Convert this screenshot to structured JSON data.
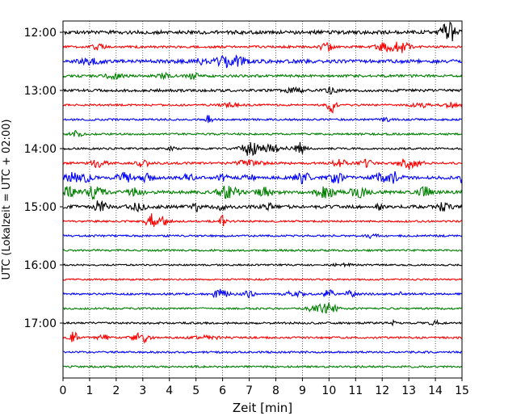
{
  "chart_data": {
    "type": "line",
    "xlabel": "Zeit  [min]",
    "ylabel": "UTC (Lokalzeit = UTC + 02:00)",
    "xlim": [
      0,
      15
    ],
    "x_ticks": [
      0,
      1,
      2,
      3,
      4,
      5,
      6,
      7,
      8,
      9,
      10,
      11,
      12,
      13,
      14,
      15
    ],
    "y_tick_labels": [
      "12:00",
      "13:00",
      "14:00",
      "15:00",
      "16:00",
      "17:00"
    ],
    "trace_start": "12:00",
    "trace_interval_min": 15,
    "trace_count": 24,
    "trace_colors": [
      "#000000",
      "#ff0000",
      "#0000ff",
      "#008000"
    ],
    "grid": "vertical dotted lines at each minute",
    "traces": [
      {
        "start": "12:00",
        "color": "#000000",
        "noise": 2.2,
        "events": [
          [
            14.4,
            8,
            0.25
          ],
          [
            14.6,
            6,
            0.2
          ]
        ]
      },
      {
        "start": "12:15",
        "color": "#ff0000",
        "noise": 1.4,
        "events": [
          [
            1.3,
            4,
            0.2
          ],
          [
            9.9,
            7,
            0.2
          ],
          [
            12.1,
            5,
            0.3
          ],
          [
            12.7,
            7,
            0.3
          ]
        ]
      },
      {
        "start": "12:30",
        "color": "#0000ff",
        "noise": 2.2,
        "events": [
          [
            1.0,
            4,
            0.3
          ],
          [
            6.2,
            7,
            0.4
          ],
          [
            6.7,
            4,
            0.2
          ],
          [
            5.2,
            3,
            0.2
          ]
        ]
      },
      {
        "start": "12:45",
        "color": "#008000",
        "noise": 1.6,
        "events": [
          [
            1.9,
            3,
            0.3
          ],
          [
            3.8,
            3,
            0.2
          ],
          [
            4.9,
            3,
            0.2
          ]
        ]
      },
      {
        "start": "13:00",
        "color": "#000000",
        "noise": 1.6,
        "events": [
          [
            8.7,
            3,
            0.3
          ],
          [
            10.1,
            3,
            0.2
          ]
        ]
      },
      {
        "start": "13:15",
        "color": "#ff0000",
        "noise": 1.2,
        "events": [
          [
            6.3,
            2,
            0.3
          ],
          [
            10.1,
            9,
            0.15
          ],
          [
            13.4,
            3,
            0.3
          ],
          [
            14.6,
            3,
            0.3
          ]
        ]
      },
      {
        "start": "13:30",
        "color": "#0000ff",
        "noise": 1.2,
        "events": [
          [
            5.5,
            7,
            0.1
          ],
          [
            12.1,
            2,
            0.2
          ]
        ]
      },
      {
        "start": "13:45",
        "color": "#008000",
        "noise": 1.2,
        "events": [
          [
            0.5,
            4,
            0.2
          ]
        ]
      },
      {
        "start": "14:00",
        "color": "#000000",
        "noise": 1.2,
        "events": [
          [
            4.1,
            4,
            0.1
          ],
          [
            7.0,
            8,
            0.3
          ],
          [
            7.8,
            4,
            0.6
          ],
          [
            8.9,
            7,
            0.2
          ]
        ]
      },
      {
        "start": "14:15",
        "color": "#ff0000",
        "noise": 1.4,
        "events": [
          [
            1.3,
            4,
            0.3
          ],
          [
            3.0,
            6,
            0.2
          ],
          [
            7.0,
            3,
            0.5
          ],
          [
            10.4,
            4,
            0.3
          ],
          [
            11.4,
            4,
            0.2
          ],
          [
            13.0,
            6,
            0.4
          ]
        ]
      },
      {
        "start": "14:30",
        "color": "#0000ff",
        "noise": 1.8,
        "events": [
          [
            0.3,
            6,
            0.3
          ],
          [
            0.9,
            4,
            0.2
          ],
          [
            2.3,
            6,
            0.3
          ],
          [
            3.1,
            6,
            0.2
          ],
          [
            4.7,
            4,
            0.2
          ],
          [
            6.0,
            4,
            0.2
          ],
          [
            7.0,
            4,
            0.2
          ],
          [
            9.0,
            6,
            0.3
          ],
          [
            10.3,
            6,
            0.3
          ],
          [
            12.0,
            6,
            0.3
          ],
          [
            12.5,
            7,
            0.2
          ],
          [
            15.0,
            6,
            0.1
          ]
        ]
      },
      {
        "start": "14:45",
        "color": "#008000",
        "noise": 2.0,
        "events": [
          [
            0.2,
            6,
            0.3
          ],
          [
            1.2,
            7,
            0.3
          ],
          [
            2.7,
            4,
            0.3
          ],
          [
            6.2,
            7,
            0.4
          ],
          [
            7.6,
            5,
            0.3
          ],
          [
            9.9,
            6,
            0.4
          ],
          [
            11.1,
            6,
            0.3
          ],
          [
            13.6,
            6,
            0.2
          ]
        ]
      },
      {
        "start": "15:00",
        "color": "#000000",
        "noise": 2.0,
        "events": [
          [
            1.4,
            8,
            0.2
          ],
          [
            2.8,
            4,
            0.3
          ],
          [
            5.0,
            7,
            0.1
          ],
          [
            5.9,
            3,
            0.2
          ],
          [
            7.7,
            4,
            0.2
          ],
          [
            11.9,
            5,
            0.1
          ],
          [
            14.3,
            4,
            0.3
          ]
        ]
      },
      {
        "start": "15:15",
        "color": "#ff0000",
        "noise": 1.2,
        "events": [
          [
            3.3,
            9,
            0.2
          ],
          [
            3.8,
            5,
            0.2
          ],
          [
            6.0,
            8,
            0.1
          ]
        ]
      },
      {
        "start": "15:30",
        "color": "#0000ff",
        "noise": 1.2,
        "events": [
          [
            11.6,
            4,
            0.2
          ]
        ]
      },
      {
        "start": "15:45",
        "color": "#008000",
        "noise": 1.2,
        "events": []
      },
      {
        "start": "16:00",
        "color": "#000000",
        "noise": 1.0,
        "events": [
          [
            10.5,
            2,
            0.3
          ]
        ]
      },
      {
        "start": "16:15",
        "color": "#ff0000",
        "noise": 1.0,
        "events": []
      },
      {
        "start": "16:30",
        "color": "#0000ff",
        "noise": 1.2,
        "events": [
          [
            5.9,
            5,
            0.3
          ],
          [
            7.0,
            4,
            0.2
          ],
          [
            8.7,
            4,
            0.3
          ],
          [
            10.0,
            5,
            0.2
          ],
          [
            10.8,
            4,
            0.2
          ],
          [
            12.6,
            4,
            0.1
          ]
        ]
      },
      {
        "start": "16:45",
        "color": "#008000",
        "noise": 1.2,
        "events": [
          [
            9.5,
            4,
            0.3
          ],
          [
            10.0,
            6,
            0.3
          ]
        ]
      },
      {
        "start": "17:00",
        "color": "#000000",
        "noise": 1.2,
        "events": [
          [
            12.4,
            4,
            0.1
          ],
          [
            14.0,
            3,
            0.2
          ]
        ]
      },
      {
        "start": "17:15",
        "color": "#ff0000",
        "noise": 1.2,
        "events": [
          [
            0.4,
            7,
            0.15
          ],
          [
            1.5,
            4,
            0.2
          ],
          [
            2.9,
            7,
            0.3
          ],
          [
            5.4,
            2,
            0.5
          ]
        ]
      },
      {
        "start": "17:30",
        "color": "#0000ff",
        "noise": 1.2,
        "events": []
      },
      {
        "start": "17:45",
        "color": "#008000",
        "noise": 1.2,
        "events": []
      }
    ]
  }
}
